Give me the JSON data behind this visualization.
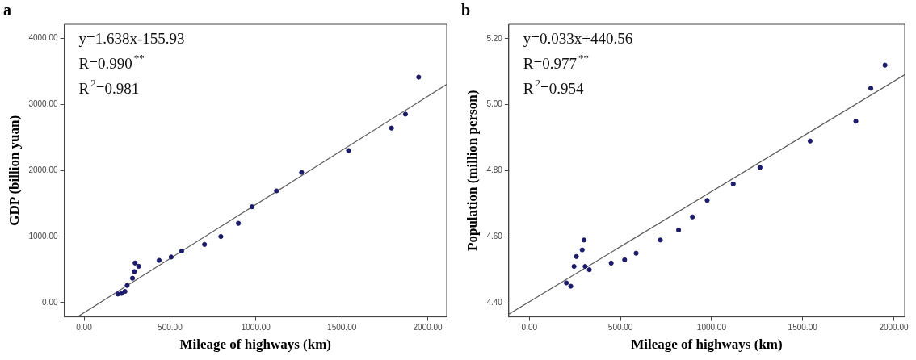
{
  "chart_data": [
    {
      "type": "scatter",
      "title": "a",
      "xlabel": "Mileage of highways (km)",
      "ylabel": "GDP (billion yuan)",
      "xlim": [
        -115,
        2110
      ],
      "ylim": [
        -215,
        4210
      ],
      "xticks": [
        {
          "value": 0,
          "label": "0.00"
        },
        {
          "value": 500,
          "label": "500.00"
        },
        {
          "value": 1000,
          "label": "1000.00"
        },
        {
          "value": 1500,
          "label": "1500.00"
        },
        {
          "value": 2000,
          "label": "2000.00"
        }
      ],
      "yticks": [
        {
          "value": 0,
          "label": "0.00"
        },
        {
          "value": 1000,
          "label": "1000.00"
        },
        {
          "value": 2000,
          "label": "2000.00"
        },
        {
          "value": 3000,
          "label": "3000.00"
        },
        {
          "value": 4000,
          "label": "4000.00"
        }
      ],
      "grid": false,
      "legend": false,
      "marker": "circle",
      "annotations": [
        "y=1.638x-155.93",
        "R=0.990$^{**}$",
        "R$^{2}$=0.981"
      ],
      "series": [
        {
          "color": "#1c1c6b",
          "x": [
            197,
            218,
            238,
            251,
            282,
            293,
            297,
            318,
            437,
            507,
            568,
            701,
            796,
            898,
            977,
            1120,
            1266,
            1539,
            1789,
            1870,
            1947
          ],
          "values": [
            130,
            140,
            170,
            260,
            370,
            470,
            600,
            550,
            640,
            690,
            780,
            880,
            1000,
            1200,
            1450,
            1690,
            1970,
            2300,
            2640,
            2850,
            3410
          ]
        },
        {
          "type": "line",
          "color": "#555555",
          "marker": "none",
          "x": [
            -36,
            2110
          ],
          "values": [
            -210,
            3300
          ]
        }
      ]
    },
    {
      "type": "scatter",
      "title": "b",
      "xlabel": "Mileage of highways (km)",
      "ylabel": "Population (million person)",
      "xlim": [
        -113,
        2060
      ],
      "ylim": [
        4.357,
        5.244
      ],
      "xticks": [
        {
          "value": 0,
          "label": "0.00"
        },
        {
          "value": 500,
          "label": "500.00"
        },
        {
          "value": 1000,
          "label": "1000.00"
        },
        {
          "value": 1500,
          "label": "1500.00"
        },
        {
          "value": 2000,
          "label": "2000.00"
        }
      ],
      "yticks": [
        {
          "value": 4.4,
          "label": "4.40"
        },
        {
          "value": 4.6,
          "label": "4.60"
        },
        {
          "value": 4.8,
          "label": "4.80"
        },
        {
          "value": 5.0,
          "label": "5.00"
        },
        {
          "value": 5.2,
          "label": "5.20"
        }
      ],
      "grid": false,
      "legend": false,
      "marker": "circle",
      "annotations": [
        "y=0.033x+440.56",
        "R=0.977$^{**}$",
        "R$^{2}$=0.954"
      ],
      "series": [
        {
          "color": "#1c1c6b",
          "x": [
            203,
            227,
            245,
            258,
            290,
            300,
            306,
            329,
            449,
            523,
            586,
            719,
            819,
            895,
            976,
            1119,
            1266,
            1541,
            1792,
            1874,
            1952
          ],
          "values": [
            4.46,
            4.45,
            4.51,
            4.54,
            4.56,
            4.59,
            4.51,
            4.5,
            4.52,
            4.53,
            4.55,
            4.59,
            4.62,
            4.66,
            4.71,
            4.76,
            4.81,
            4.89,
            4.95,
            5.05,
            5.12
          ]
        },
        {
          "type": "line",
          "color": "#555555",
          "marker": "none",
          "x": [
            -113,
            2060
          ],
          "values": [
            4.365,
            5.091
          ]
        }
      ]
    }
  ]
}
